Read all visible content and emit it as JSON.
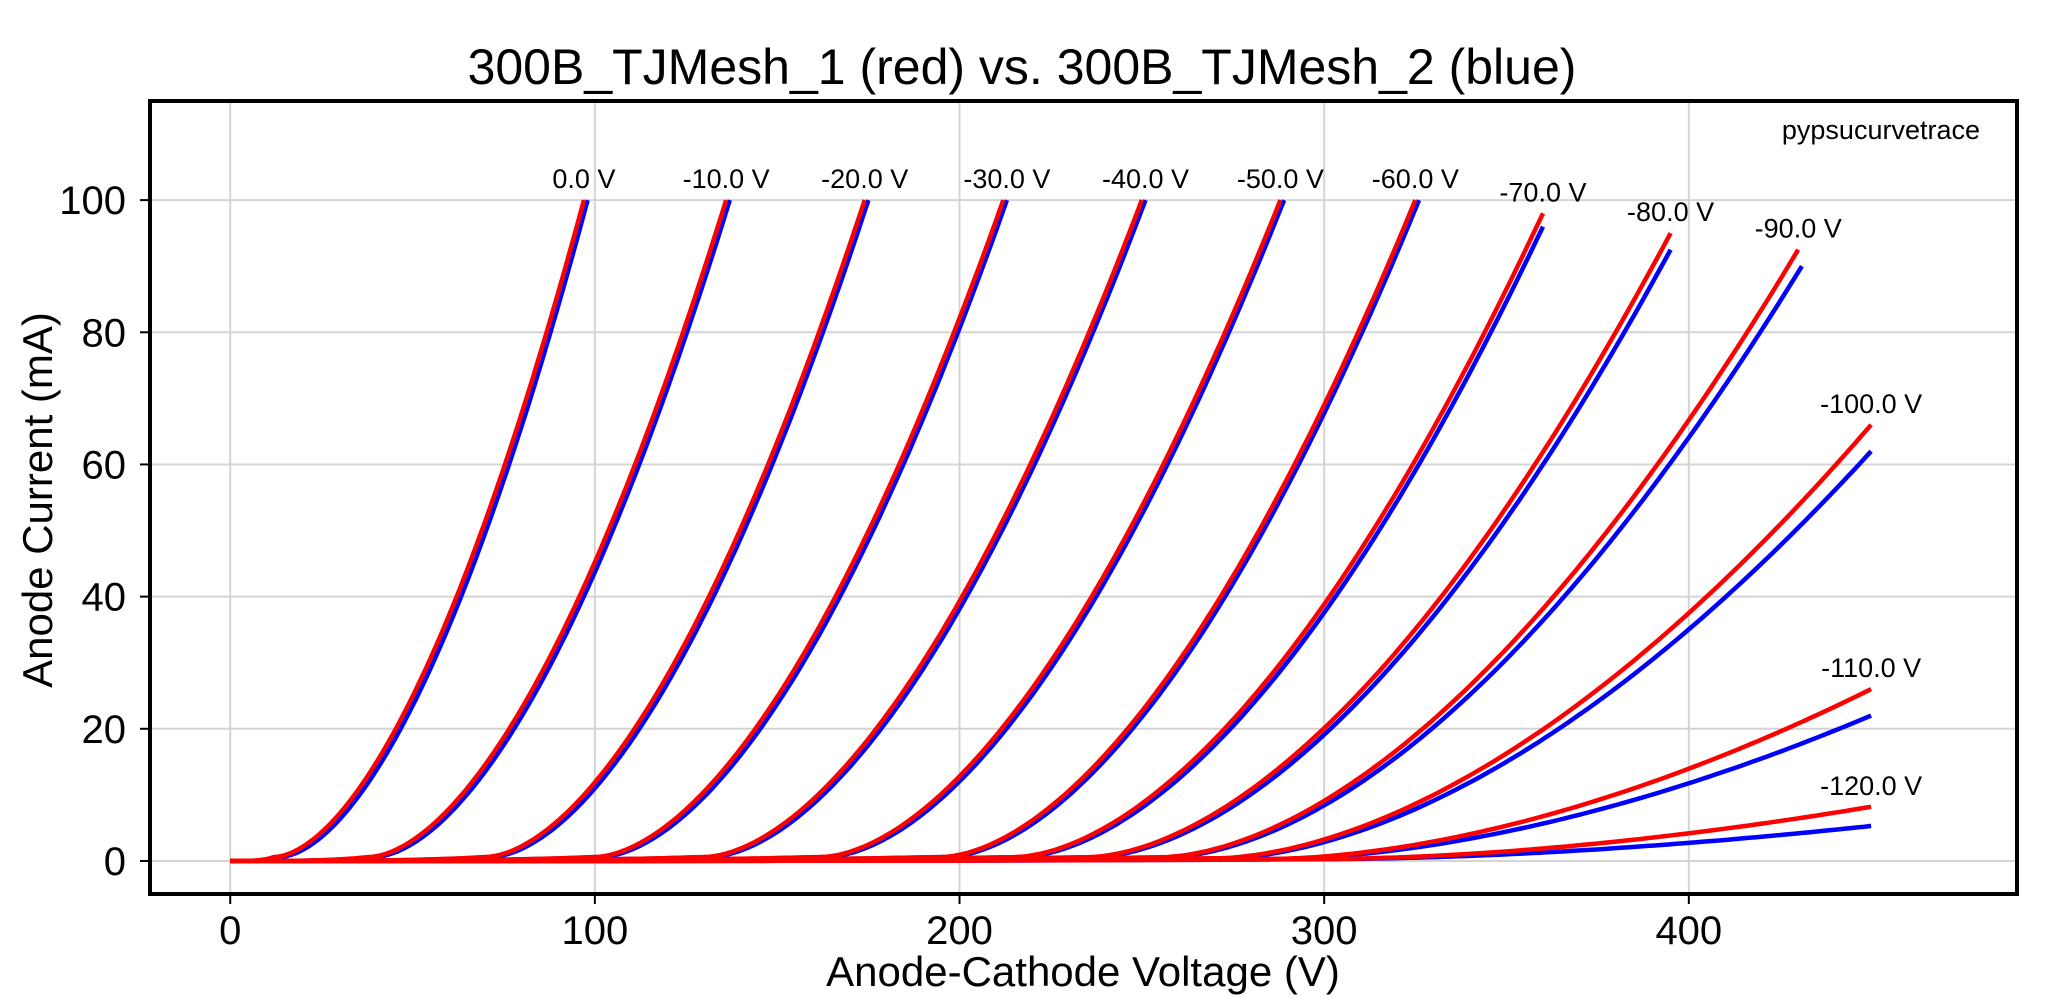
{
  "chart_data": {
    "type": "line",
    "title": "300B_TJMesh_1 (red) vs. 300B_TJMesh_2 (blue)",
    "xlabel": "Anode-Cathode Voltage (V)",
    "ylabel": "Anode Current (mA)",
    "watermark": "pypsucurvetrace",
    "xlim": [
      -22,
      490
    ],
    "ylim": [
      -5,
      115
    ],
    "xticks": [
      0,
      100,
      200,
      300,
      400
    ],
    "yticks": [
      0,
      20,
      40,
      60,
      80,
      100
    ],
    "grid": true,
    "colors": {
      "red": "#ff0000",
      "blue": "#0000ff"
    },
    "series_colors": [
      "#ff0000",
      "#0000ff"
    ],
    "curves": [
      {
        "label": "0.0 V",
        "start": 12,
        "red": [
          97,
          100
        ],
        "blue": [
          98,
          100
        ],
        "label_at": [
          97,
          100
        ]
      },
      {
        "label": "-10.0 V",
        "start": 38,
        "red": [
          136,
          100
        ],
        "blue": [
          137,
          100
        ],
        "label_at": [
          136,
          100
        ]
      },
      {
        "label": "-20.0 V",
        "start": 70,
        "red": [
          174,
          100
        ],
        "blue": [
          175,
          100
        ],
        "label_at": [
          174,
          100
        ]
      },
      {
        "label": "-30.0 V",
        "start": 100,
        "red": [
          212,
          100
        ],
        "blue": [
          213,
          100
        ],
        "label_at": [
          213,
          100
        ]
      },
      {
        "label": "-40.0 V",
        "start": 130,
        "red": [
          250,
          100
        ],
        "blue": [
          251,
          100
        ],
        "label_at": [
          251,
          100
        ]
      },
      {
        "label": "-50.0 V",
        "start": 162,
        "red": [
          288,
          100
        ],
        "blue": [
          289,
          100
        ],
        "label_at": [
          288,
          100
        ]
      },
      {
        "label": "-60.0 V",
        "start": 195,
        "red": [
          325,
          100
        ],
        "blue": [
          326,
          100
        ],
        "label_at": [
          325,
          100
        ]
      },
      {
        "label": "-70.0 V",
        "start": 215,
        "red": [
          360,
          98
        ],
        "blue": [
          360,
          96
        ],
        "label_at": [
          360,
          98
        ]
      },
      {
        "label": "-80.0 V",
        "start": 235,
        "red": [
          395,
          95
        ],
        "blue": [
          395,
          92.5
        ],
        "label_at": [
          395,
          95
        ]
      },
      {
        "label": "-90.0 V",
        "start": 255,
        "red": [
          430,
          92.5
        ],
        "blue": [
          431,
          90
        ],
        "label_at": [
          430,
          92.5
        ]
      },
      {
        "label": "-100.0 V",
        "start": 270,
        "red": [
          450,
          66
        ],
        "blue": [
          450,
          62
        ],
        "label_at": [
          450,
          66
        ]
      },
      {
        "label": "-110.0 V",
        "start": 285,
        "red": [
          450,
          26
        ],
        "blue": [
          450,
          22
        ],
        "label_at": [
          450,
          26
        ]
      },
      {
        "label": "-120.0 V",
        "start": 300,
        "red": [
          450,
          8.2
        ],
        "blue": [
          450,
          5.3
        ],
        "label_at": [
          450,
          8.2
        ]
      }
    ]
  }
}
